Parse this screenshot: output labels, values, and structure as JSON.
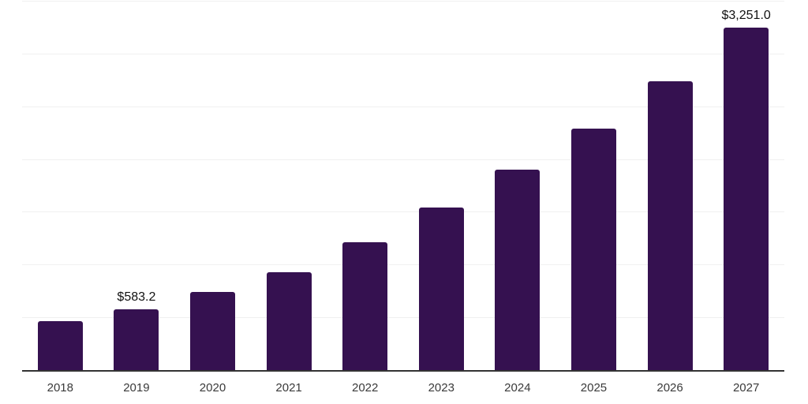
{
  "chart_data": {
    "type": "bar",
    "title": "",
    "xlabel": "",
    "ylabel": "",
    "categories": [
      "2018",
      "2019",
      "2020",
      "2021",
      "2022",
      "2023",
      "2024",
      "2025",
      "2026",
      "2027"
    ],
    "values": [
      470,
      583.2,
      750,
      938,
      1221,
      1545,
      1906,
      2298,
      2747,
      3251
    ],
    "data_labels": [
      null,
      "$583.2",
      null,
      null,
      null,
      null,
      null,
      null,
      null,
      "$3,251.0"
    ],
    "ylim": [
      0,
      3500
    ],
    "gridline_step": 500,
    "grid": true,
    "legend_position": "none",
    "colors": {
      "bar": "#351150",
      "axis": "#333333",
      "gridline": "#f0f0f0",
      "tick_label": "#3a3a3a",
      "data_label": "#111111",
      "background": "#ffffff"
    }
  }
}
